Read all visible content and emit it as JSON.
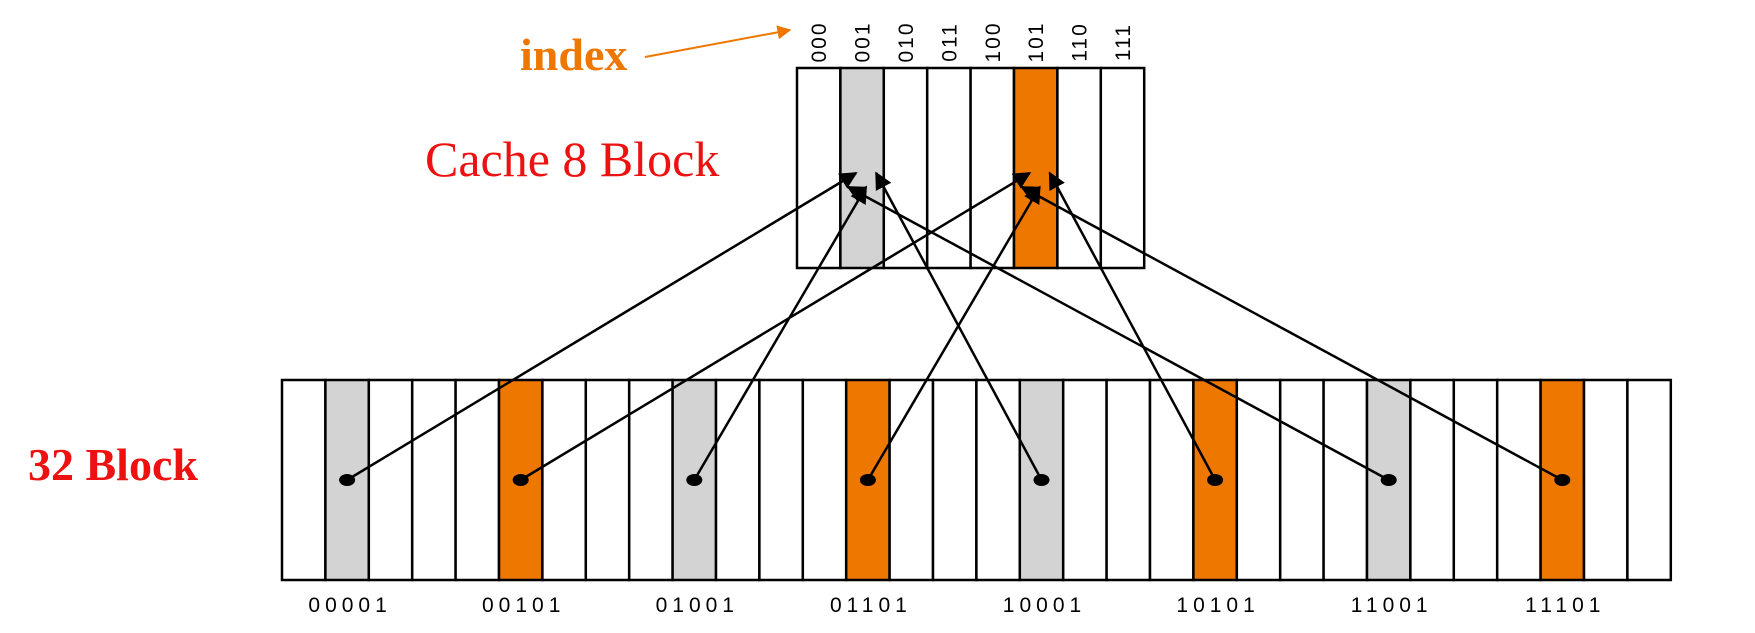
{
  "labels": {
    "index": "index",
    "cache": "Cache 8 Block",
    "memory": "32 Block"
  },
  "colors": {
    "highlight": "#ee7700",
    "gray": "#d3d3d3",
    "label_red": "#ee1111",
    "label_orange": "#ee7700",
    "stroke": "#000000"
  },
  "cache": {
    "block_count": 8,
    "indices": [
      "000",
      "001",
      "010",
      "011",
      "100",
      "101",
      "110",
      "111"
    ],
    "gray_blocks": [
      1
    ],
    "orange_blocks": [
      5
    ]
  },
  "memory": {
    "block_count": 32,
    "gray_blocks": [
      1,
      9,
      17,
      25
    ],
    "orange_blocks": [
      5,
      13,
      21,
      29
    ],
    "addresses": [
      {
        "block": 1,
        "label": "00001"
      },
      {
        "block": 5,
        "label": "00101"
      },
      {
        "block": 9,
        "label": "01001"
      },
      {
        "block": 13,
        "label": "01101"
      },
      {
        "block": 17,
        "label": "10001"
      },
      {
        "block": 21,
        "label": "10101"
      },
      {
        "block": 25,
        "label": "11001"
      },
      {
        "block": 29,
        "label": "11101"
      }
    ]
  },
  "mappings": [
    {
      "from": 1,
      "to": 1
    },
    {
      "from": 5,
      "to": 5
    },
    {
      "from": 9,
      "to": 1
    },
    {
      "from": 13,
      "to": 5
    },
    {
      "from": 17,
      "to": 1
    },
    {
      "from": 21,
      "to": 5
    },
    {
      "from": 25,
      "to": 1
    },
    {
      "from": 29,
      "to": 5
    }
  ]
}
